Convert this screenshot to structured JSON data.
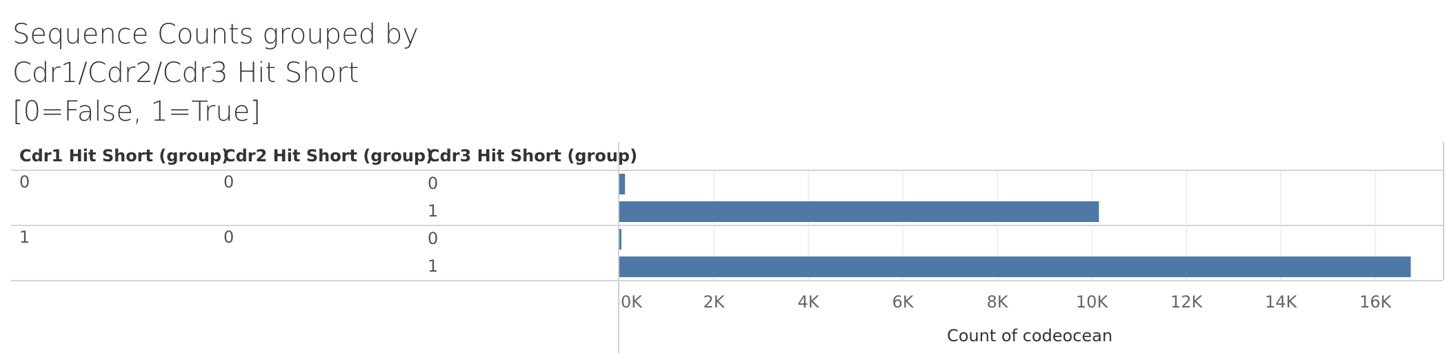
{
  "title_lines": [
    "Sequence Counts grouped by",
    "Cdr1/Cdr2/Cdr3 Hit Short",
    "[0=False, 1=True]"
  ],
  "headers": {
    "cdr1": "Cdr1 Hit Short (group)",
    "cdr2": "Cdr2 Hit Short (group)",
    "cdr3": "Cdr3 Hit Short (group)"
  },
  "rows": [
    {
      "cdr1": "0",
      "cdr2": "0",
      "cdr3": "0"
    },
    {
      "cdr1": "",
      "cdr2": "",
      "cdr3": "1"
    },
    {
      "cdr1": "1",
      "cdr2": "0",
      "cdr3": "0"
    },
    {
      "cdr1": "",
      "cdr2": "",
      "cdr3": "1"
    }
  ],
  "colors": {
    "bar": "#4e79a7",
    "grid": "#ebebeb",
    "rule": "#d4d4d4"
  },
  "chart_data": {
    "type": "bar",
    "orientation": "horizontal",
    "categories": [
      "0 | 0 | 0",
      "0 | 0 | 1",
      "1 | 0 | 0",
      "1 | 0 | 1"
    ],
    "values": [
      120,
      10150,
      40,
      16750
    ],
    "xlabel": "Count of codeocean",
    "xlim": [
      0,
      17400
    ],
    "xticks": [
      0,
      2000,
      4000,
      6000,
      8000,
      10000,
      12000,
      14000,
      16000
    ],
    "xtick_labels": [
      "0K",
      "2K",
      "4K",
      "6K",
      "8K",
      "10K",
      "12K",
      "14K",
      "16K"
    ],
    "grid": true
  }
}
